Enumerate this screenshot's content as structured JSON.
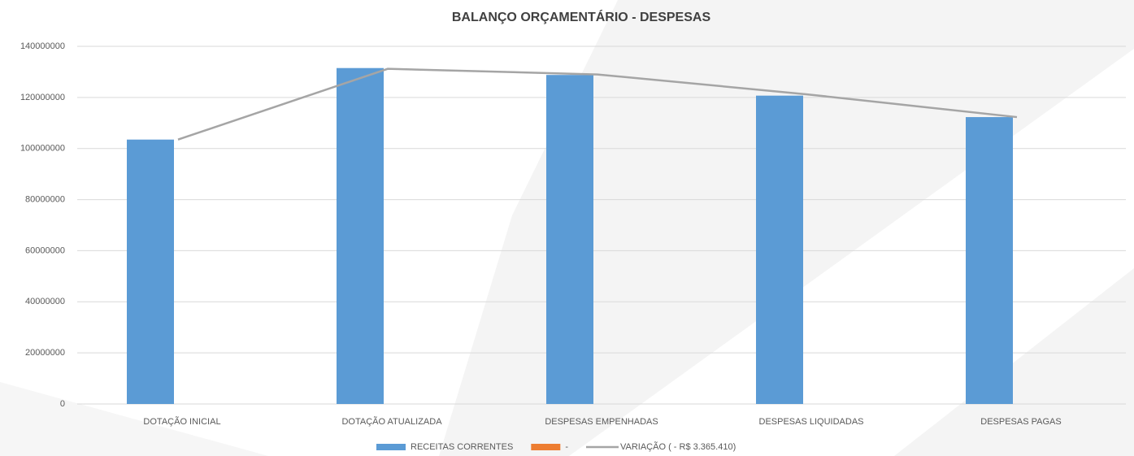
{
  "chart_data": {
    "type": "bar",
    "title": "BALANÇO ORÇAMENTÁRIO - DESPESAS",
    "categories": [
      "DOTAÇÃO INICIAL",
      "DOTAÇÃO ATUALIZADA",
      "DESPESAS EMPENHADAS",
      "DESPESAS LIQUIDADAS",
      "DESPESAS PAGAS"
    ],
    "series": [
      {
        "name": "RECEITAS CORRENTES",
        "color": "#5b9bd5",
        "type": "bar",
        "values": [
          103500000,
          131500000,
          128800000,
          120700000,
          112300000
        ]
      },
      {
        "name": "-",
        "color": "#ed7d31",
        "type": "bar",
        "values": [
          0,
          0,
          0,
          0,
          0
        ]
      },
      {
        "name": "VARIAÇÃO ( - R$ 3.365.410)",
        "color": "#a5a5a5",
        "type": "line",
        "values": [
          103500000,
          131200000,
          129000000,
          121200000,
          112300000
        ]
      }
    ],
    "ylim": [
      0,
      140000000
    ],
    "yticks": [
      0,
      20000000,
      40000000,
      60000000,
      80000000,
      100000000,
      120000000,
      140000000
    ],
    "grid": true,
    "legend": "bottom"
  }
}
